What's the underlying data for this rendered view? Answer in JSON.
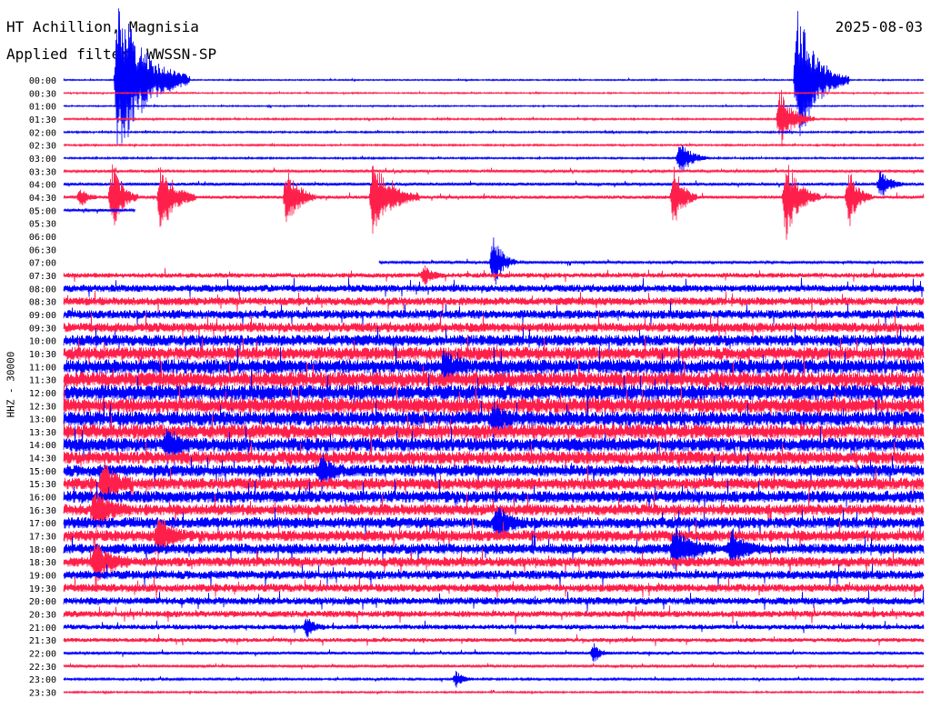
{
  "header": {
    "station": "HT Achillion, Magnisia",
    "date": "2025-08-03",
    "filter": "Applied filter: WWSSN-SP"
  },
  "channel_label": "HHZ - 30000",
  "colors": {
    "odd": "#0000ff",
    "even": "#ff1f4b",
    "text": "#000000"
  },
  "chart_data": {
    "type": "line",
    "description_kind": "helicorder",
    "x_unit": "minutes within row",
    "x_range": [
      0,
      30
    ],
    "row_labels": [
      "00:00",
      "00:30",
      "01:00",
      "01:30",
      "02:00",
      "02:30",
      "03:00",
      "03:30",
      "04:00",
      "04:30",
      "05:00",
      "05:30",
      "06:00",
      "06:30",
      "07:00",
      "07:30",
      "08:00",
      "08:30",
      "09:00",
      "09:30",
      "10:00",
      "10:30",
      "11:00",
      "11:30",
      "12:00",
      "12:30",
      "13:00",
      "13:30",
      "14:00",
      "14:30",
      "15:00",
      "15:30",
      "16:00",
      "16:30",
      "17:00",
      "17:30",
      "18:00",
      "18:30",
      "19:00",
      "19:30",
      "20:00",
      "20:30",
      "21:00",
      "21:30",
      "22:00",
      "22:30",
      "23:00",
      "23:30"
    ],
    "gap_start": 10,
    "gap_end": 14,
    "row14_start_minute": 11,
    "noise_level": [
      0.15,
      0.15,
      0.15,
      0.2,
      0.2,
      0.2,
      0.2,
      0.3,
      0.35,
      0.4,
      0.3,
      0,
      0,
      0,
      0.3,
      0.6,
      0.9,
      1.0,
      1.1,
      1.2,
      1.4,
      1.6,
      1.8,
      1.9,
      1.9,
      1.9,
      1.8,
      1.8,
      1.7,
      1.6,
      1.5,
      1.5,
      1.5,
      1.4,
      1.4,
      1.4,
      1.3,
      1.2,
      1.1,
      1.0,
      0.9,
      0.8,
      0.6,
      0.5,
      0.35,
      0.3,
      0.25,
      0.2
    ],
    "events": [
      {
        "row": 0,
        "minute": 1.9,
        "amplitude": 95,
        "duration_min": 2.5
      },
      {
        "row": 0,
        "minute": 25.6,
        "amplitude": 80,
        "duration_min": 1.8
      },
      {
        "row": 3,
        "minute": 25.0,
        "amplitude": 35,
        "duration_min": 1.2
      },
      {
        "row": 6,
        "minute": 21.5,
        "amplitude": 22,
        "duration_min": 1.0
      },
      {
        "row": 8,
        "minute": 28.5,
        "amplitude": 18,
        "duration_min": 0.8
      },
      {
        "row": 9,
        "minute": 0.6,
        "amplitude": 12,
        "duration_min": 0.6
      },
      {
        "row": 9,
        "minute": 1.7,
        "amplitude": 40,
        "duration_min": 0.9
      },
      {
        "row": 9,
        "minute": 3.4,
        "amplitude": 45,
        "duration_min": 1.2
      },
      {
        "row": 9,
        "minute": 7.8,
        "amplitude": 40,
        "duration_min": 1.0
      },
      {
        "row": 9,
        "minute": 10.8,
        "amplitude": 45,
        "duration_min": 1.6
      },
      {
        "row": 9,
        "minute": 21.3,
        "amplitude": 40,
        "duration_min": 0.8
      },
      {
        "row": 9,
        "minute": 25.2,
        "amplitude": 50,
        "duration_min": 1.2
      },
      {
        "row": 9,
        "minute": 27.4,
        "amplitude": 35,
        "duration_min": 0.8
      },
      {
        "row": 14,
        "minute": 15.0,
        "amplitude": 35,
        "duration_min": 0.8
      },
      {
        "row": 15,
        "minute": 12.6,
        "amplitude": 12,
        "duration_min": 0.6
      },
      {
        "row": 22,
        "minute": 13.3,
        "amplitude": 18,
        "duration_min": 0.8
      },
      {
        "row": 26,
        "minute": 15.0,
        "amplitude": 18,
        "duration_min": 0.8
      },
      {
        "row": 28,
        "minute": 3.6,
        "amplitude": 20,
        "duration_min": 0.8
      },
      {
        "row": 30,
        "minute": 9.0,
        "amplitude": 18,
        "duration_min": 0.8
      },
      {
        "row": 31,
        "minute": 1.4,
        "amplitude": 25,
        "duration_min": 1.0
      },
      {
        "row": 33,
        "minute": 1.1,
        "amplitude": 25,
        "duration_min": 1.2
      },
      {
        "row": 34,
        "minute": 15.1,
        "amplitude": 20,
        "duration_min": 1.0
      },
      {
        "row": 35,
        "minute": 3.3,
        "amplitude": 25,
        "duration_min": 1.0
      },
      {
        "row": 36,
        "minute": 21.3,
        "amplitude": 25,
        "duration_min": 1.4
      },
      {
        "row": 36,
        "minute": 23.3,
        "amplitude": 20,
        "duration_min": 1.0
      },
      {
        "row": 37,
        "minute": 1.1,
        "amplitude": 25,
        "duration_min": 1.2
      },
      {
        "row": 42,
        "minute": 8.5,
        "amplitude": 12,
        "duration_min": 0.6
      },
      {
        "row": 44,
        "minute": 18.5,
        "amplitude": 10,
        "duration_min": 0.6
      },
      {
        "row": 46,
        "minute": 13.7,
        "amplitude": 10,
        "duration_min": 0.6
      }
    ]
  }
}
